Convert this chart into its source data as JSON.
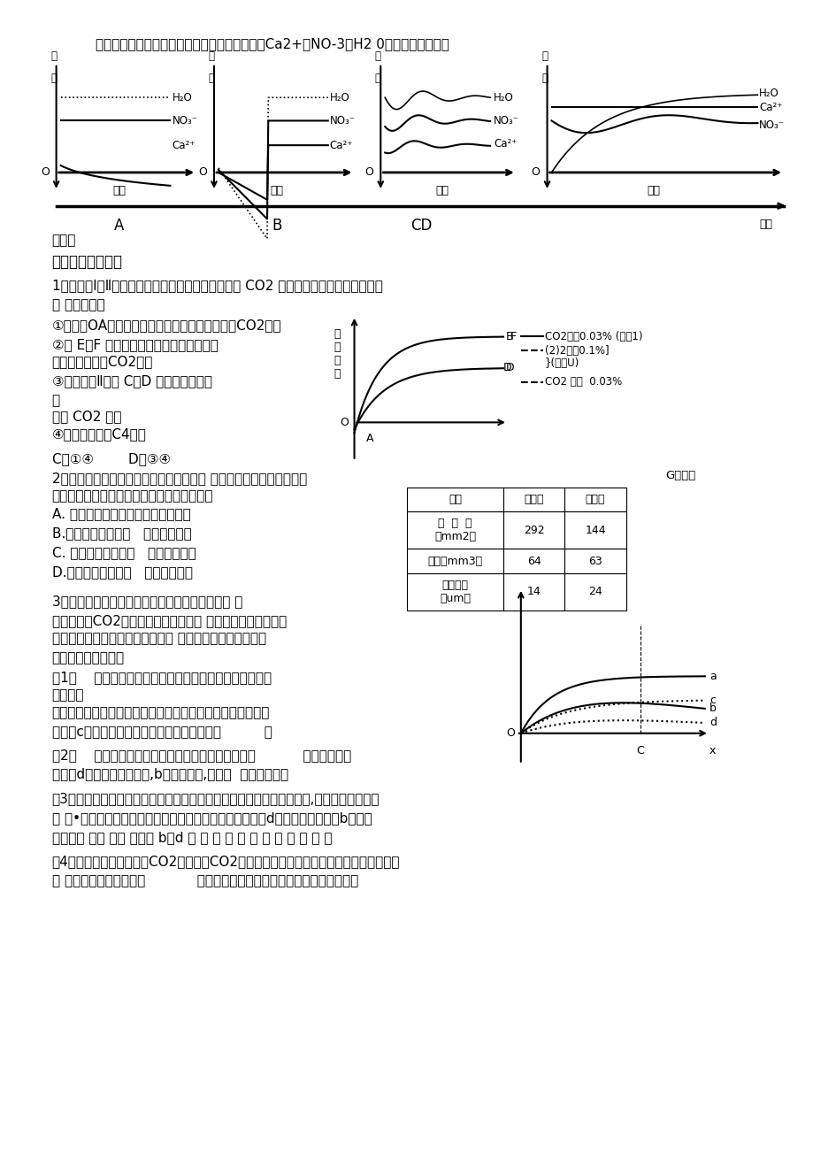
{
  "bg_color": "#ffffff",
  "line0": "叶恢复正常。下面是施肥后根尖成熟区细胞吸收Ca2+、NO-3和H2 0的示意图，正确的",
  "line_shi": "是（）",
  "section4": "四、【过关练习】",
  "q1_l1": "1、下图为Ⅰ、Ⅱ两种植物光合作用强度与光照强度和 CO2 浓度的关系示意图，有关叙述",
  "q1_l2": "正 确的是（）",
  "q1_o1": "①在曲线OA段，两种植物光合速率的限制因素是CO2浓度",
  "q1_o2a": "②在 E－F 光强范围内，影响两种植物光合",
  "q1_o2b": "速率的因素只有CO2浓度",
  "q1_o3a": "③影响植物Ⅱ出现 C、D 两点差异的主要",
  "q1_o3b": "因",
  "q1_o3c": "素是 CO2 浓度",
  "q1_o4": "④植物很可能是C4植物",
  "q1_ans": "C、①④        D、③④",
  "q2_l1": "2、某个春季低温潮湿、夏季高温干旱的地 区生长着一种春、夏季叶型",
  "q2_l2": "不同的植物，其叶型数据如下表。试推断（）",
  "q2_oA": "A. 甲型叶生长在春季，利于光合作用",
  "q2_oB": "B.乙型叶生长在春季   利于光合作用",
  "q2_oC": "C. 甲型叶生长在夏季   降低蒸腾作用",
  "q2_oD": "D.乙型叶生长在夏季   增强蒸腾作用",
  "q3_l1": "3、绿色植物光合作用的影响因素是多方面的，其 外",
  "q3_l2": "光照强度、CO2的含量，温度等；其内 部因素有酶的活性、色",
  "q3_l3": "素的数量、五碳化合物的含量等。 根据右图影响光合作用的",
  "q3_l4": "因素回答下列问题：",
  "q3_q1a": "（1）    如果右图横坐标代表光照强度，其影响光合速率主",
  "q3_q1b": "要是影响",
  "q3_q1c": "阶段，此时内部限制性因素最可能是。若阴生植物的光合作用",
  "q3_q1d": "曲线为c，则阳生植物的光合作用曲线最可能是          。",
  "q3_q2a": "（2）    如果右图横坐标代表温度，温度主要通过影响           来影响光合速",
  "q3_q2b": "响光合速",
  "q3_q2c": "率。若d曲线表示干物质量,b表示呼吸量,则图中  表示光合作用",
  "q3_q3a": "（3）叶面积指数是指单位土地面积上植物的总叶面积。叶面积指数越大,叶片交错重叠程度",
  "q3_q3b": "越 大•若右图表示叶面积（横坐标表示）与光合作用（曲线d）和呼吸用（曲线b）两个",
  "q3_q3c": "重要生理 过程 的关 系，则 b、d 两 条 曲 线 所 围 成 的 部 分 表 示",
  "q3_q4a": "（4）如果右图横坐标代表CO2的含量，CO2的含量影响光合作用主要是影响的产生，此时",
  "q3_q4b": "内 部限制性因素最可能是            。显微镜下观察某植物叶的横切片，发现维管",
  "graph_g_label": "G光强度"
}
